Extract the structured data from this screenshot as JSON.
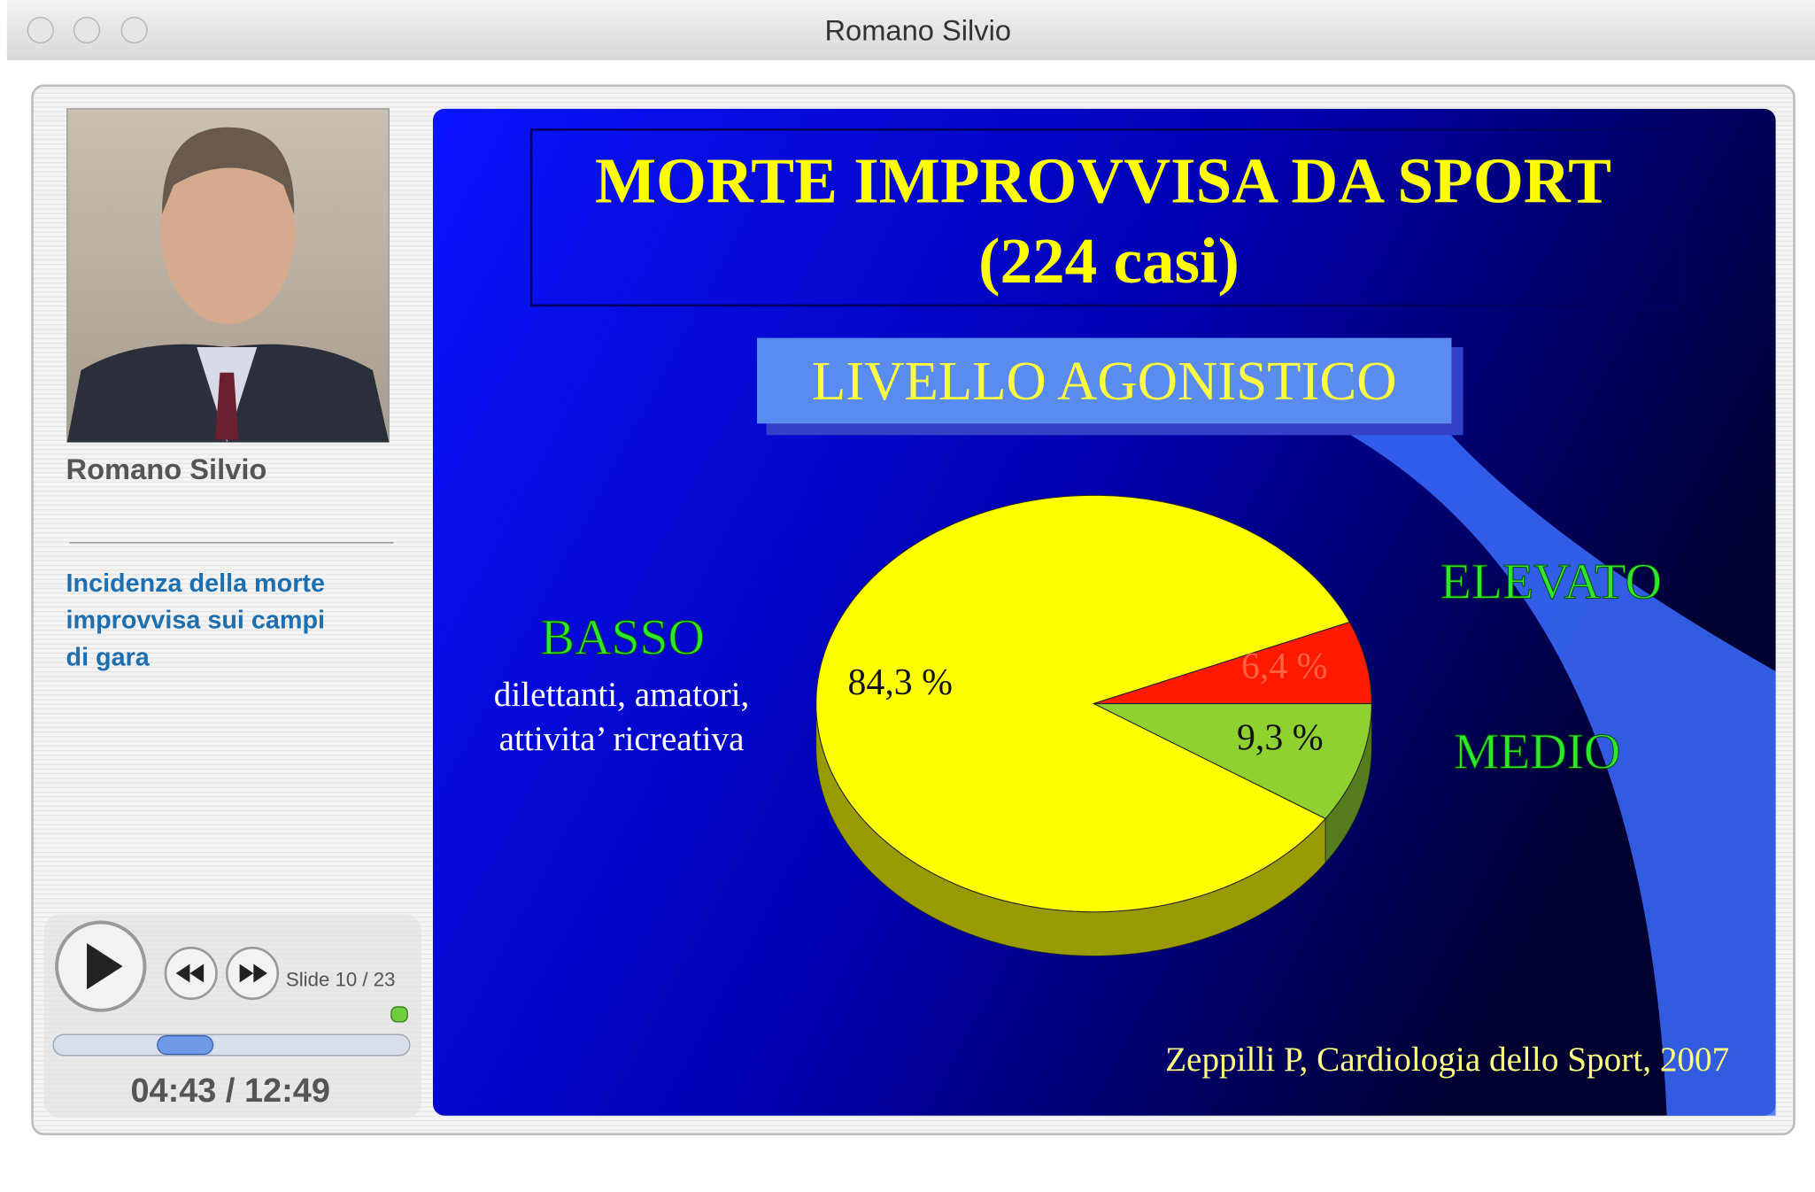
{
  "window": {
    "title": "Romano Silvio"
  },
  "presenter": {
    "name": "Romano Silvio"
  },
  "description": [
    "Incidenza della morte",
    "improvvisa sui campi",
    "di gara"
  ],
  "player": {
    "slide": "Slide 10 / 23",
    "time": "04:43 / 12:49"
  },
  "slide": {
    "title": "MORTE IMPROVVISA DA SPORT",
    "subtitle": "(224  casi)",
    "heading": "LIVELLO AGONISTICO",
    "basso_note": [
      "dilettanti, amatori,",
      "attivita’  ricreativa"
    ],
    "source": "Zeppilli P, Cardiologia dello Sport, 2007",
    "chart_data": {
      "type": "pie",
      "categories": [
        "BASSO",
        "ELEVATO",
        "MEDIO"
      ],
      "values": [
        84.3,
        6.4,
        9.3
      ],
      "value_labels": [
        "84,3 %",
        "6,4 %",
        "9,3 %"
      ],
      "colors": [
        "#ffff00",
        "#ff1a00",
        "#8fd130"
      ]
    }
  }
}
